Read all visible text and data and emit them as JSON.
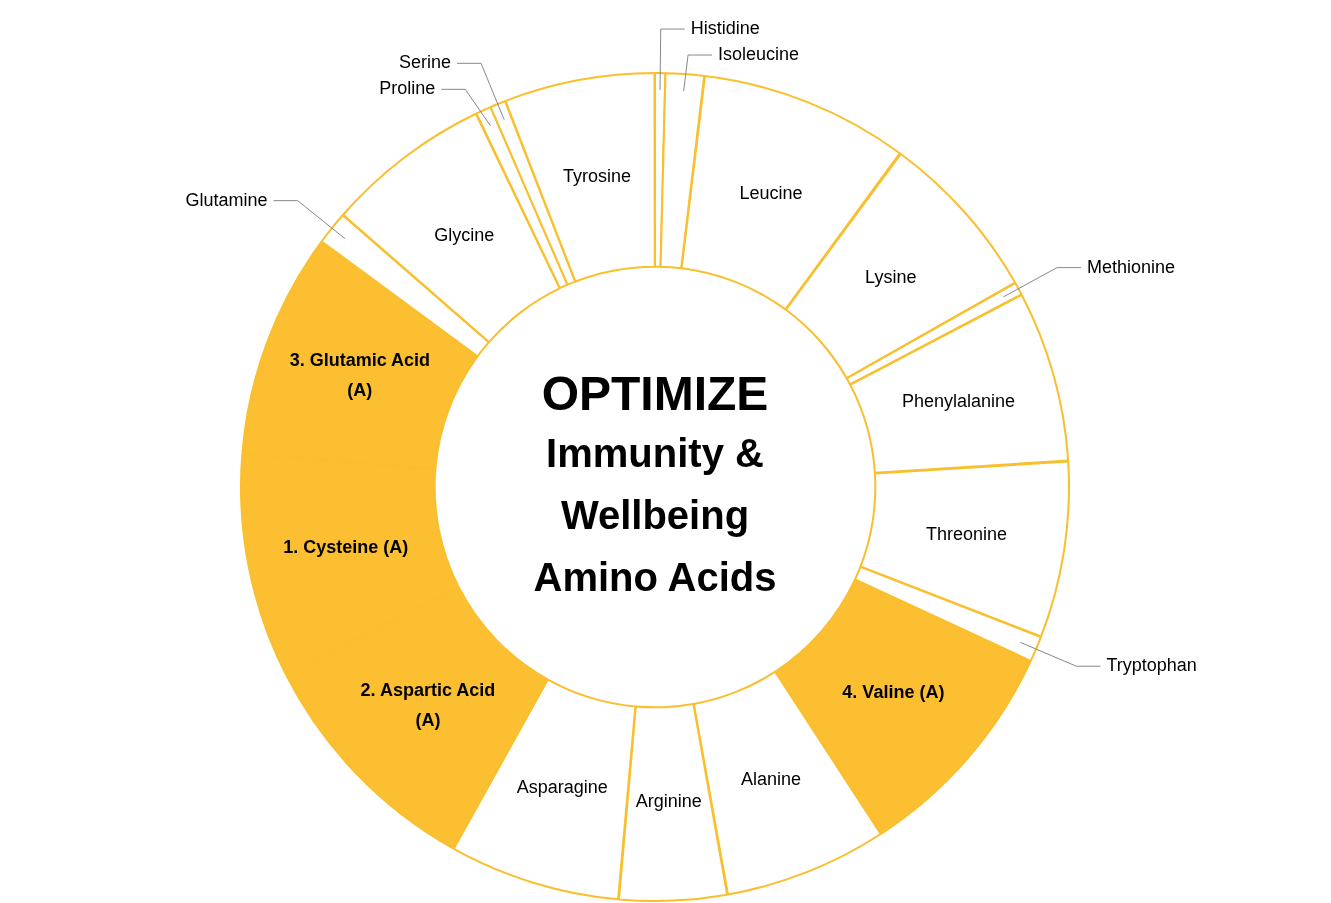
{
  "chart_data": {
    "type": "donut",
    "title": "OPTIMIZE",
    "subtitle": "Immunity & Wellbeing Amino Acids",
    "categories": [
      "Histidine",
      "Isoleucine",
      "Leucine",
      "Lysine",
      "Methionine",
      "Phenylalanine",
      "Threonine",
      "Tryptophan",
      "4. Valine (A)",
      "Alanine",
      "Arginine",
      "Asparagine",
      "2. Aspartic Acid (A)",
      "1. Cysteine (A)",
      "3. Glutamic Acid (A)",
      "Glutamine",
      "Glycine",
      "Proline",
      "Serine",
      "Tyrosine"
    ],
    "values": [
      0.4,
      1.5,
      8.2,
      6.7,
      0.5,
      6.7,
      6.9,
      1.0,
      8.9,
      6.4,
      4.2,
      6.7,
      9.4,
      8.8,
      8.8,
      1.3,
      6.5,
      0.6,
      0.6,
      5.9
    ],
    "colors": [
      "#ffffff",
      "#ffffff",
      "#ffffff",
      "#ffffff",
      "#ffffff",
      "#ffffff",
      "#ffffff",
      "#ffffff",
      "#fbbf31",
      "#ffffff",
      "#ffffff",
      "#ffffff",
      "#fbbf31",
      "#fbbf31",
      "#fbbf31",
      "#ffffff",
      "#ffffff",
      "#ffffff",
      "#ffffff",
      "#ffffff"
    ],
    "legend": false
  }
}
